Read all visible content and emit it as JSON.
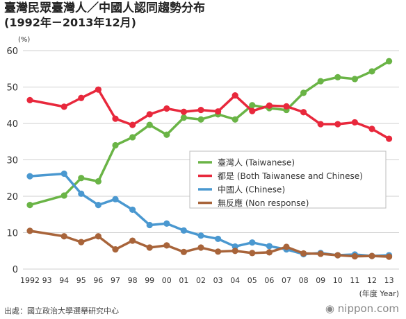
{
  "header": {
    "title": "臺灣民眾臺灣人／中國人認同趨勢分布",
    "subtitle": "(1992年－2013年12月)"
  },
  "footer": {
    "source": "出處：國立政治大學選舉研究中心",
    "logo": "nippon.com"
  },
  "chart_data": {
    "type": "line",
    "ylabel": "(%)",
    "xlabel": "(年度 Year)",
    "ylim": [
      0,
      60
    ],
    "yticks": [
      0,
      10,
      20,
      30,
      40,
      50,
      60
    ],
    "grid": true,
    "legend_position": "center-right",
    "categories": [
      "1992",
      "93",
      "94",
      "95",
      "96",
      "97",
      "98",
      "99",
      "00",
      "01",
      "02",
      "03",
      "04",
      "05",
      "06",
      "07",
      "08",
      "09",
      "10",
      "11",
      "12",
      "13"
    ],
    "series": [
      {
        "name": "臺灣人 (Taiwanese)",
        "color": "#6ab446",
        "points": [
          [
            1992,
            17.6
          ],
          [
            1994,
            20.2
          ],
          [
            1995,
            25.0
          ],
          [
            1996,
            24.1
          ],
          [
            1997,
            34.0
          ],
          [
            1998,
            36.2
          ],
          [
            1999,
            39.6
          ],
          [
            2000,
            36.9
          ],
          [
            2001,
            41.6
          ],
          [
            2002,
            41.1
          ],
          [
            2003,
            42.5
          ],
          [
            2004,
            41.1
          ],
          [
            2005,
            45.0
          ],
          [
            2006,
            44.2
          ],
          [
            2007,
            43.7
          ],
          [
            2008,
            48.4
          ],
          [
            2009,
            51.6
          ],
          [
            2010,
            52.7
          ],
          [
            2011,
            52.2
          ],
          [
            2012,
            54.3
          ],
          [
            2013,
            57.1
          ]
        ]
      },
      {
        "name": "都是 (Both Taiwanese and Chinese)",
        "color": "#e8283c",
        "points": [
          [
            1992,
            46.4
          ],
          [
            1994,
            44.6
          ],
          [
            1995,
            47.0
          ],
          [
            1996,
            49.3
          ],
          [
            1997,
            41.3
          ],
          [
            1998,
            39.6
          ],
          [
            1999,
            42.5
          ],
          [
            2000,
            44.1
          ],
          [
            2001,
            43.2
          ],
          [
            2002,
            43.7
          ],
          [
            2003,
            43.3
          ],
          [
            2004,
            47.7
          ],
          [
            2005,
            43.4
          ],
          [
            2006,
            44.9
          ],
          [
            2007,
            44.7
          ],
          [
            2008,
            43.1
          ],
          [
            2009,
            39.8
          ],
          [
            2010,
            39.8
          ],
          [
            2011,
            40.3
          ],
          [
            2012,
            38.5
          ],
          [
            2013,
            35.8
          ]
        ]
      },
      {
        "name": "中國人 (Chinese)",
        "color": "#4a98d0",
        "points": [
          [
            1992,
            25.5
          ],
          [
            1994,
            26.2
          ],
          [
            1995,
            20.7
          ],
          [
            1996,
            17.6
          ],
          [
            1997,
            19.2
          ],
          [
            1998,
            16.3
          ],
          [
            1999,
            12.1
          ],
          [
            2000,
            12.5
          ],
          [
            2001,
            10.6
          ],
          [
            2002,
            9.2
          ],
          [
            2003,
            8.3
          ],
          [
            2004,
            6.2
          ],
          [
            2005,
            7.3
          ],
          [
            2006,
            6.3
          ],
          [
            2007,
            5.4
          ],
          [
            2008,
            4.1
          ],
          [
            2009,
            4.4
          ],
          [
            2010,
            3.8
          ],
          [
            2011,
            4.0
          ],
          [
            2012,
            3.6
          ],
          [
            2013,
            3.8
          ]
        ]
      },
      {
        "name": "無反應 (Non response)",
        "color": "#a8643a",
        "points": [
          [
            1992,
            10.5
          ],
          [
            1994,
            9.0
          ],
          [
            1995,
            7.4
          ],
          [
            1996,
            9.0
          ],
          [
            1997,
            5.4
          ],
          [
            1998,
            7.8
          ],
          [
            1999,
            5.9
          ],
          [
            2000,
            6.5
          ],
          [
            2001,
            4.7
          ],
          [
            2002,
            5.9
          ],
          [
            2003,
            4.8
          ],
          [
            2004,
            5.0
          ],
          [
            2005,
            4.4
          ],
          [
            2006,
            4.6
          ],
          [
            2007,
            6.1
          ],
          [
            2008,
            4.3
          ],
          [
            2009,
            4.2
          ],
          [
            2010,
            3.8
          ],
          [
            2011,
            3.5
          ],
          [
            2012,
            3.6
          ],
          [
            2013,
            3.4
          ]
        ]
      }
    ]
  }
}
